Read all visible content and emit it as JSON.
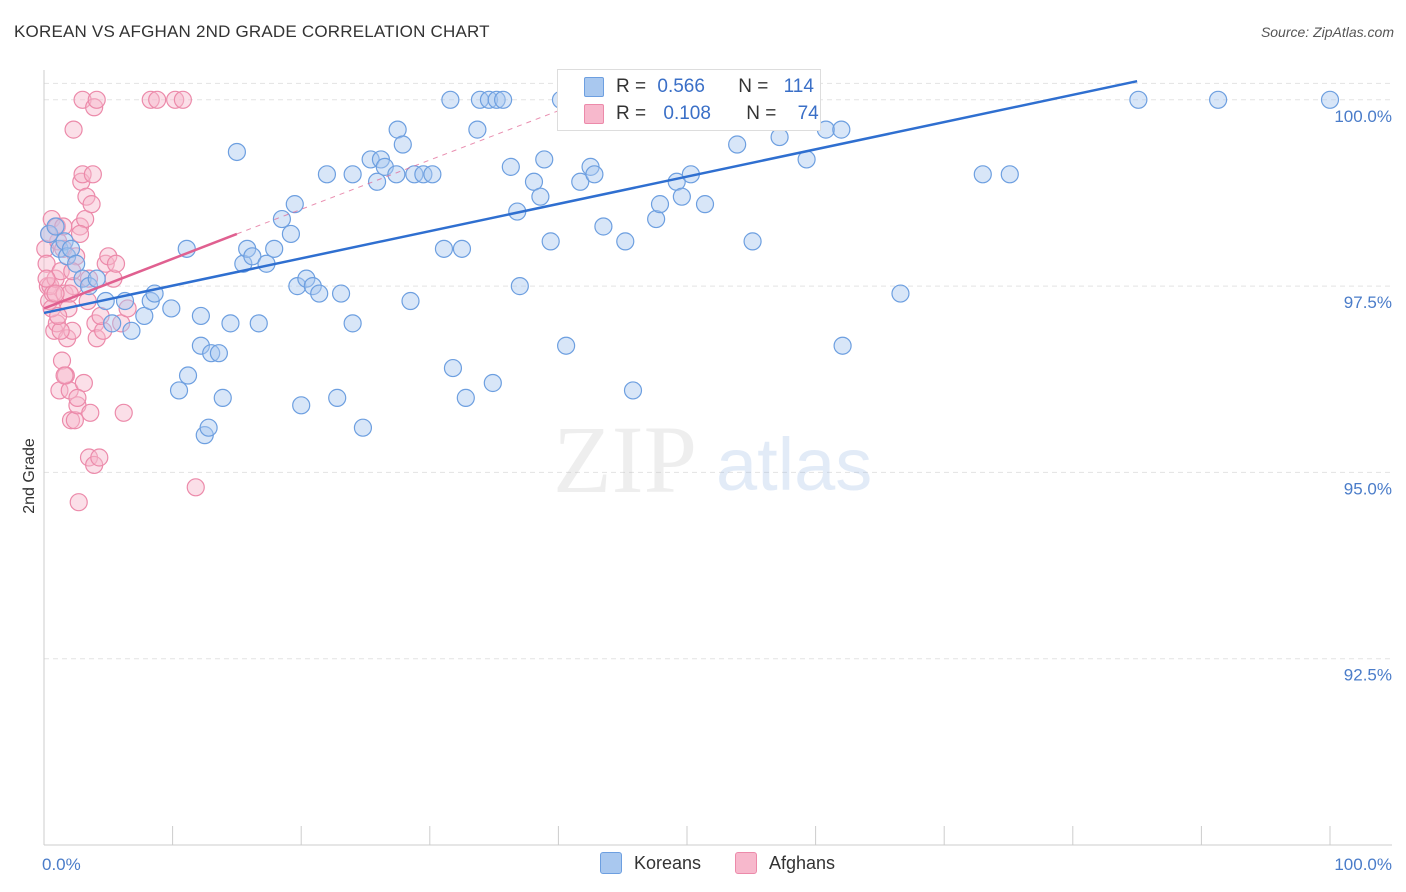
{
  "title": "KOREAN VS AFGHAN 2ND GRADE CORRELATION CHART",
  "source": "Source: ZipAtlas.com",
  "watermark": {
    "zip": "ZIP",
    "atlas": "atlas"
  },
  "legend": {
    "korean": {
      "r_label": "R =",
      "r_value": "0.566",
      "n_label": "N =",
      "n_value": "114"
    },
    "afghan": {
      "r_label": "R =",
      "r_value": "0.108",
      "n_label": "N =",
      "n_value": "74"
    }
  },
  "bottom_legend": {
    "korean": "Koreans",
    "afghan": "Afghans"
  },
  "colors": {
    "korean_fill": "#a9c8ef",
    "korean_stroke": "#6d9fe0",
    "korean_line": "#2f6fd0",
    "afghan_fill": "#f7b8cc",
    "afghan_stroke": "#ec8aaa",
    "afghan_line": "#e06090",
    "tick_label": "#4a7cc9",
    "grid": "#e3e3e3"
  },
  "chart_data": {
    "type": "scatter",
    "title": "KOREAN VS AFGHAN 2ND GRADE CORRELATION CHART",
    "xlabel": "",
    "ylabel": "2nd Grade",
    "xlim": [
      0,
      100
    ],
    "ylim": [
      90.0,
      100.4
    ],
    "x_tick_labels": [
      "0.0%",
      "100.0%"
    ],
    "y_ticks": [
      92.5,
      95.0,
      97.5,
      100.0
    ],
    "y_tick_labels": [
      "92.5%",
      "95.0%",
      "97.5%",
      "100.0%"
    ],
    "grid": true,
    "legend_position": "top-center",
    "series": [
      {
        "name": "Koreans",
        "r": 0.566,
        "n": 114,
        "trend": {
          "x": [
            0,
            85
          ],
          "y": [
            97.14,
            100.25
          ]
        },
        "points": [
          [
            0.4,
            98.2
          ],
          [
            0.9,
            98.3
          ],
          [
            1.2,
            98.0
          ],
          [
            1.6,
            98.1
          ],
          [
            1.8,
            97.9
          ],
          [
            2.1,
            98.0
          ],
          [
            2.5,
            97.8
          ],
          [
            3.0,
            97.6
          ],
          [
            3.5,
            97.5
          ],
          [
            4.1,
            97.6
          ],
          [
            4.8,
            97.3
          ],
          [
            5.3,
            97.0
          ],
          [
            6.3,
            97.3
          ],
          [
            6.8,
            96.9
          ],
          [
            7.8,
            97.1
          ],
          [
            8.3,
            97.3
          ],
          [
            8.6,
            97.4
          ],
          [
            9.9,
            97.2
          ],
          [
            11.1,
            98.0
          ],
          [
            11.2,
            96.3
          ],
          [
            10.5,
            96.1
          ],
          [
            12.2,
            97.1
          ],
          [
            12.2,
            96.7
          ],
          [
            12.5,
            95.5
          ],
          [
            12.8,
            95.6
          ],
          [
            13.0,
            96.6
          ],
          [
            13.6,
            96.6
          ],
          [
            13.9,
            96.0
          ],
          [
            14.5,
            97.0
          ],
          [
            15.0,
            99.3
          ],
          [
            15.5,
            97.8
          ],
          [
            15.8,
            98.0
          ],
          [
            16.2,
            97.9
          ],
          [
            16.7,
            97.0
          ],
          [
            17.3,
            97.8
          ],
          [
            17.9,
            98.0
          ],
          [
            18.5,
            98.4
          ],
          [
            19.2,
            98.2
          ],
          [
            19.5,
            98.6
          ],
          [
            19.7,
            97.5
          ],
          [
            20.0,
            95.9
          ],
          [
            20.4,
            97.6
          ],
          [
            20.9,
            97.5
          ],
          [
            21.4,
            97.4
          ],
          [
            22.0,
            99.0
          ],
          [
            22.8,
            96.0
          ],
          [
            23.1,
            97.4
          ],
          [
            24.0,
            97.0
          ],
          [
            24.0,
            99.0
          ],
          [
            24.8,
            95.6
          ],
          [
            25.4,
            99.2
          ],
          [
            25.9,
            98.9
          ],
          [
            26.2,
            99.2
          ],
          [
            26.5,
            99.1
          ],
          [
            27.4,
            99.0
          ],
          [
            27.5,
            99.6
          ],
          [
            27.9,
            99.4
          ],
          [
            28.5,
            97.3
          ],
          [
            28.8,
            99.0
          ],
          [
            29.5,
            99.0
          ],
          [
            30.2,
            99.0
          ],
          [
            31.1,
            98.0
          ],
          [
            31.6,
            100.0
          ],
          [
            31.8,
            96.4
          ],
          [
            32.5,
            98.0
          ],
          [
            32.8,
            96.0
          ],
          [
            33.7,
            99.6
          ],
          [
            33.9,
            100.0
          ],
          [
            34.6,
            100.0
          ],
          [
            34.9,
            96.2
          ],
          [
            35.2,
            100.0
          ],
          [
            35.7,
            100.0
          ],
          [
            36.3,
            99.1
          ],
          [
            36.8,
            98.5
          ],
          [
            37.0,
            97.5
          ],
          [
            38.1,
            98.9
          ],
          [
            38.6,
            98.7
          ],
          [
            38.9,
            99.2
          ],
          [
            39.4,
            98.1
          ],
          [
            40.2,
            100.0
          ],
          [
            40.6,
            96.7
          ],
          [
            41.3,
            100.0
          ],
          [
            41.7,
            98.9
          ],
          [
            42.5,
            99.1
          ],
          [
            42.8,
            99.0
          ],
          [
            43.5,
            98.3
          ],
          [
            44.3,
            100.0
          ],
          [
            45.2,
            98.1
          ],
          [
            45.8,
            96.1
          ],
          [
            46.3,
            100.0
          ],
          [
            47.6,
            98.4
          ],
          [
            47.9,
            98.6
          ],
          [
            48.7,
            100.0
          ],
          [
            49.2,
            98.9
          ],
          [
            49.6,
            98.7
          ],
          [
            50.3,
            99.0
          ],
          [
            51.4,
            98.6
          ],
          [
            53.0,
            100.0
          ],
          [
            53.9,
            99.4
          ],
          [
            54.2,
            99.8
          ],
          [
            55.1,
            98.1
          ],
          [
            56.3,
            100.0
          ],
          [
            57.2,
            99.5
          ],
          [
            58.3,
            100.0
          ],
          [
            59.3,
            99.2
          ],
          [
            60.8,
            99.6
          ],
          [
            62.0,
            99.6
          ],
          [
            62.1,
            96.7
          ],
          [
            66.6,
            97.4
          ],
          [
            73.0,
            99.0
          ],
          [
            75.1,
            99.0
          ],
          [
            85.1,
            100.0
          ],
          [
            91.3,
            100.0
          ],
          [
            100.0,
            100.0
          ]
        ]
      },
      {
        "name": "Afghans",
        "r": 0.108,
        "n": 74,
        "trend": {
          "x": [
            0,
            15
          ],
          "y": [
            97.2,
            98.2
          ]
        },
        "trend_extension": {
          "x": [
            15,
            46
          ],
          "y": [
            98.2,
            100.25
          ]
        },
        "points": [
          [
            0.1,
            98.0
          ],
          [
            0.2,
            97.8
          ],
          [
            0.3,
            97.5
          ],
          [
            0.4,
            97.3
          ],
          [
            0.5,
            97.5
          ],
          [
            0.6,
            98.4
          ],
          [
            0.7,
            97.4
          ],
          [
            0.8,
            96.9
          ],
          [
            0.9,
            97.6
          ],
          [
            1.0,
            98.3
          ],
          [
            1.0,
            97.0
          ],
          [
            1.1,
            98.1
          ],
          [
            1.2,
            96.1
          ],
          [
            1.3,
            97.7
          ],
          [
            1.4,
            96.5
          ],
          [
            1.5,
            98.0
          ],
          [
            1.6,
            97.4
          ],
          [
            1.7,
            96.3
          ],
          [
            1.8,
            96.8
          ],
          [
            1.9,
            97.2
          ],
          [
            2.0,
            96.1
          ],
          [
            2.1,
            95.7
          ],
          [
            2.2,
            96.9
          ],
          [
            2.3,
            97.5
          ],
          [
            2.4,
            95.7
          ],
          [
            2.5,
            97.9
          ],
          [
            2.6,
            95.9
          ],
          [
            2.7,
            94.6
          ],
          [
            2.8,
            98.3
          ],
          [
            2.9,
            98.9
          ],
          [
            3.0,
            99.0
          ],
          [
            3.1,
            96.2
          ],
          [
            3.2,
            98.4
          ],
          [
            3.3,
            98.7
          ],
          [
            3.4,
            97.3
          ],
          [
            3.5,
            95.2
          ],
          [
            3.6,
            95.8
          ],
          [
            3.7,
            98.6
          ],
          [
            3.8,
            99.0
          ],
          [
            3.9,
            95.1
          ],
          [
            4.0,
            97.0
          ],
          [
            4.1,
            96.8
          ],
          [
            4.3,
            95.2
          ],
          [
            4.6,
            96.9
          ],
          [
            4.8,
            97.8
          ],
          [
            5.0,
            97.9
          ],
          [
            5.4,
            97.6
          ],
          [
            5.6,
            97.8
          ],
          [
            6.0,
            97.0
          ],
          [
            6.2,
            95.8
          ],
          [
            6.5,
            97.2
          ],
          [
            8.3,
            100.0
          ],
          [
            8.8,
            100.0
          ],
          [
            10.2,
            100.0
          ],
          [
            10.8,
            100.0
          ],
          [
            2.3,
            99.6
          ],
          [
            3.0,
            100.0
          ],
          [
            3.9,
            99.9
          ],
          [
            4.1,
            100.0
          ],
          [
            1.5,
            98.3
          ],
          [
            2.0,
            97.4
          ],
          [
            0.2,
            97.6
          ],
          [
            0.6,
            97.2
          ],
          [
            1.3,
            96.9
          ],
          [
            2.6,
            96.0
          ],
          [
            3.5,
            97.6
          ],
          [
            4.4,
            97.1
          ],
          [
            11.8,
            94.8
          ],
          [
            0.4,
            98.2
          ],
          [
            1.1,
            97.1
          ],
          [
            2.8,
            98.2
          ],
          [
            1.6,
            96.3
          ],
          [
            0.9,
            97.4
          ],
          [
            2.2,
            97.7
          ]
        ]
      }
    ]
  }
}
